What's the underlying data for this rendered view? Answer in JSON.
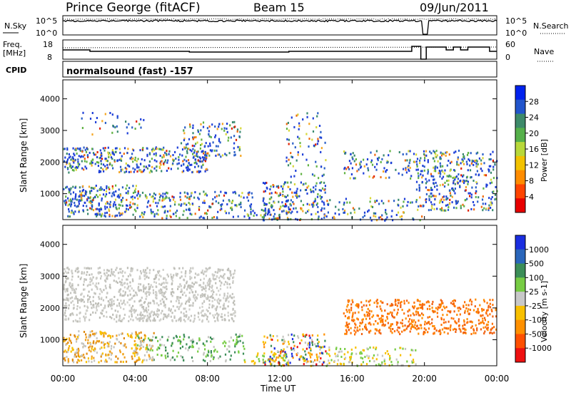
{
  "header": {
    "station": "Prince George (fitACF)",
    "beam": "Beam 15",
    "date": "09/Jun/2011"
  },
  "noise_panel": {
    "left_label": "N.Sky",
    "right_label": "N.Search",
    "left_ticks": [
      "10^5",
      "10^0"
    ],
    "right_ticks": [
      "10^5",
      "10^0"
    ]
  },
  "freq_panel": {
    "left_label_1": "Freq.",
    "left_label_2": "[MHz]",
    "right_label": "Nave",
    "left_ticks": [
      "18",
      "8"
    ],
    "right_ticks": [
      "60",
      "0"
    ]
  },
  "cpid_panel": {
    "label": "CPID",
    "text": "normalsound (fast) -157"
  },
  "chart_data": [
    {
      "type": "heatmap",
      "name": "power",
      "ylabel": "Slant Range [km]",
      "y_ticks": [
        "1000",
        "2000",
        "3000",
        "4000"
      ],
      "ylim": [
        180,
        4600
      ],
      "xlim": [
        0,
        24
      ],
      "colorbar_label": "Power [dB]",
      "colorbar_ticks": [
        "28",
        "24",
        "20",
        "16",
        "12",
        "8",
        "4"
      ],
      "colorbar_colors": [
        "#0022ee",
        "#2255cc",
        "#3d8a6a",
        "#55b04a",
        "#b8d83a",
        "#f2c200",
        "#ff8c00",
        "#ff4400",
        "#e80000"
      ],
      "scatter_colors": [
        "#1e3fd8",
        "#2a5fc8",
        "#3a8a6e",
        "#62b344",
        "#d7d838",
        "#f5a623",
        "#f06a10",
        "#e02000"
      ],
      "scatter_weights": [
        34,
        18,
        14,
        12,
        8,
        6,
        5,
        3
      ],
      "blobs": [
        {
          "t0": 0.0,
          "t1": 8.0,
          "r0": 1700,
          "r1": 2500,
          "d": 0.55
        },
        {
          "t0": 0.0,
          "t1": 4.2,
          "r0": 600,
          "r1": 1300,
          "d": 0.6
        },
        {
          "t0": 0.2,
          "t1": 4.5,
          "r0": 300,
          "r1": 600,
          "d": 0.5
        },
        {
          "t0": 4.2,
          "t1": 10.5,
          "r0": 250,
          "r1": 1100,
          "d": 0.35
        },
        {
          "t0": 6.5,
          "t1": 9.8,
          "r0": 2200,
          "r1": 3300,
          "d": 0.3
        },
        {
          "t0": 1.0,
          "t1": 4.5,
          "r0": 2900,
          "r1": 3600,
          "d": 0.12
        },
        {
          "t0": 11.0,
          "t1": 14.5,
          "r0": 200,
          "r1": 1400,
          "d": 0.45
        },
        {
          "t0": 12.3,
          "t1": 14.5,
          "r0": 1500,
          "r1": 3600,
          "d": 0.15
        },
        {
          "t0": 14.5,
          "t1": 20.0,
          "r0": 180,
          "r1": 900,
          "d": 0.22
        },
        {
          "t0": 15.5,
          "t1": 19.5,
          "r0": 1500,
          "r1": 2400,
          "d": 0.25
        },
        {
          "t0": 19.5,
          "t1": 24.0,
          "r0": 500,
          "r1": 2400,
          "d": 0.4
        },
        {
          "t0": 10.0,
          "t1": 12.0,
          "r0": 180,
          "r1": 600,
          "d": 0.3
        }
      ]
    },
    {
      "type": "heatmap",
      "name": "velocity",
      "ylabel": "Slant Range [km]",
      "y_ticks": [
        "1000",
        "2000",
        "3000",
        "4000"
      ],
      "ylim": [
        180,
        4600
      ],
      "xlim": [
        0,
        24
      ],
      "colorbar_label": "Velocity [m s-1]",
      "colorbar_ticks": [
        "1000",
        "500",
        "100",
        "25",
        "-25",
        "-100",
        "-500",
        "-1000"
      ],
      "colorbar_colors": [
        "#1a2ee0",
        "#2a66bb",
        "#3c8e58",
        "#77cc44",
        "#c8c8c8",
        "#f8c000",
        "#ff9000",
        "#ff5000",
        "#ee1010"
      ],
      "blobs": [
        {
          "t0": 0.0,
          "t1": 9.5,
          "r0": 1600,
          "r1": 3300,
          "d": 0.55,
          "colors": [
            "#c5c5c0",
            "#bdbdb6",
            "#d0d0cb"
          ]
        },
        {
          "t0": 0.0,
          "t1": 5.0,
          "r0": 300,
          "r1": 1300,
          "d": 0.5,
          "colors": [
            "#f0a020",
            "#f8c000",
            "#c5c5c0",
            "#e08a10"
          ]
        },
        {
          "t0": 4.0,
          "t1": 10.0,
          "r0": 350,
          "r1": 1200,
          "d": 0.3,
          "colors": [
            "#3c8e58",
            "#77cc44",
            "#c5c5c0"
          ]
        },
        {
          "t0": 11.0,
          "t1": 14.5,
          "r0": 200,
          "r1": 1200,
          "d": 0.45,
          "colors": [
            "#1a2ee0",
            "#ee1010",
            "#f8c000",
            "#3c8e58",
            "#c5c5c0",
            "#ff9000"
          ]
        },
        {
          "t0": 14.5,
          "t1": 19.5,
          "r0": 200,
          "r1": 800,
          "d": 0.35,
          "colors": [
            "#77cc44",
            "#c5c5c0",
            "#f8c000"
          ]
        },
        {
          "t0": 15.5,
          "t1": 24.0,
          "r0": 1200,
          "r1": 2300,
          "d": 0.5,
          "colors": [
            "#ff7000",
            "#ff8c00",
            "#f06010"
          ]
        },
        {
          "t0": 10.0,
          "t1": 12.5,
          "r0": 180,
          "r1": 600,
          "d": 0.3,
          "colors": [
            "#77cc44",
            "#f8c000"
          ]
        }
      ]
    }
  ],
  "x_axis": {
    "ticks": [
      "00:00",
      "04:00",
      "08:00",
      "12:00",
      "16:00",
      "20:00",
      "00:00"
    ],
    "label": "Time UT"
  }
}
